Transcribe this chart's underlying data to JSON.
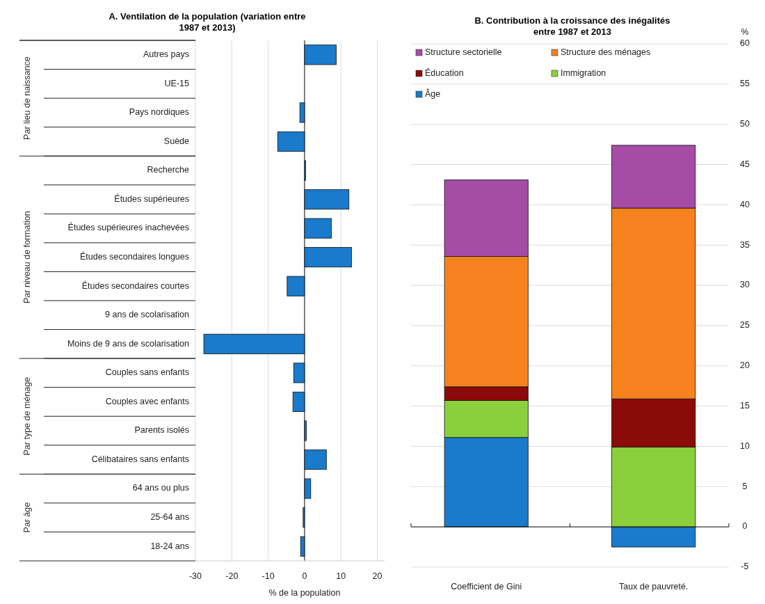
{
  "chart_data": [
    {
      "type": "bar",
      "orientation": "horizontal",
      "title": "A. Ventilation de la population (variation entre 1987 et 2013)",
      "xlabel": "% de la population",
      "categories": [
        "Autres pays",
        "UE-15",
        "Pays nordiques",
        "Suède",
        "Recherche",
        "Études supérieures",
        "Études supérieures inachevées",
        "Études secondaires longues",
        "Études secondaires courtes",
        "9 ans de scolarisation",
        "Moins de 9 ans de scolarisation",
        "Couples sans enfants",
        "Couples avec enfants",
        "Parents isolés",
        "Célibataires sans enfants",
        "64 ans ou plus",
        "25-64 ans",
        "18-24 ans"
      ],
      "values": [
        8.7,
        0,
        -1.3,
        -7.4,
        0.3,
        12.2,
        7.4,
        12.9,
        -4.8,
        0,
        -27.7,
        -3.0,
        -3.2,
        0.5,
        6.0,
        1.7,
        -0.4,
        -1.1
      ],
      "color": "#1a7acb",
      "xlim": [
        -30,
        22
      ],
      "xticks": [
        -30,
        -20,
        -10,
        0,
        10,
        20
      ],
      "grid": "x",
      "annotations": [
        "Par lieu de naissance",
        "Par niveau de formation",
        "Par type de ménage",
        "Par âge"
      ]
    },
    {
      "type": "bar",
      "stacked": true,
      "title": "B. Contribution à la croissance des inégalités entre 1987 et 2013",
      "ylabel": "%",
      "categories": [
        "Coefficient de Gini",
        "Taux de pauvreté."
      ],
      "series": [
        {
          "name": "Âge",
          "color": "#1a7acb",
          "values": [
            11.1,
            -2.5
          ]
        },
        {
          "name": "Immigration",
          "color": "#8ccf3c",
          "values": [
            4.6,
            9.9
          ]
        },
        {
          "name": "Éducation",
          "color": "#8b0a0a",
          "values": [
            1.7,
            6.0
          ]
        },
        {
          "name": "Structure des ménages",
          "color": "#f5821f",
          "values": [
            16.2,
            23.7
          ]
        },
        {
          "name": "Structure sectorielle",
          "color": "#a64ca6",
          "values": [
            9.5,
            7.8
          ]
        }
      ],
      "ylim": [
        -5,
        60
      ],
      "yticks": [
        -5,
        0,
        5,
        10,
        15,
        20,
        25,
        30,
        35,
        40,
        45,
        50,
        55,
        60
      ],
      "grid": "y",
      "legend": "top left"
    }
  ]
}
